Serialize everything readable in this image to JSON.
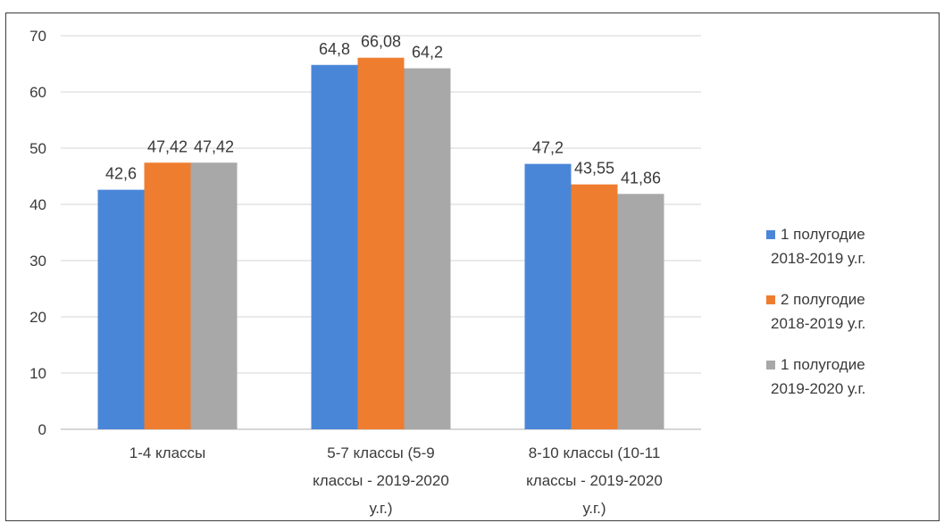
{
  "chart_data": {
    "type": "bar",
    "categories": [
      [
        "1-4 классы"
      ],
      [
        "5-7 классы (5-9",
        "классы - 2019-2020",
        "у.г.)"
      ],
      [
        "8-10 классы (10-11",
        "классы - 2019-2020",
        "у.г.)"
      ]
    ],
    "series": [
      {
        "name": [
          "1 полугодие",
          "2018-2019 у.г."
        ],
        "values": [
          42.6,
          64.8,
          47.2
        ],
        "labels": [
          "42,6",
          "64,8",
          "47,2"
        ],
        "color": "#4a86d8"
      },
      {
        "name": [
          "2 полугодие",
          "2018-2019 у.г."
        ],
        "values": [
          47.42,
          66.08,
          43.55
        ],
        "labels": [
          "47,42",
          "66,08",
          "43,55"
        ],
        "color": "#ef7d2f"
      },
      {
        "name": [
          "1 полугодие",
          "2019-2020 у.г."
        ],
        "values": [
          47.42,
          64.2,
          41.86
        ],
        "labels": [
          "47,42",
          "64,2",
          "41,86"
        ],
        "color": "#a8a8a8"
      }
    ],
    "yticks": [
      0,
      10,
      20,
      30,
      40,
      50,
      60,
      70
    ],
    "ylim": [
      0,
      70
    ],
    "grid": true,
    "legend": "right",
    "title": "",
    "xlabel": "",
    "ylabel": ""
  }
}
